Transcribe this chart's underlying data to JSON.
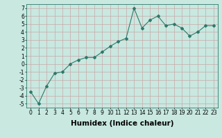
{
  "x": [
    0,
    1,
    2,
    3,
    4,
    5,
    6,
    7,
    8,
    9,
    10,
    11,
    12,
    13,
    14,
    15,
    16,
    17,
    18,
    19,
    20,
    21,
    22,
    23
  ],
  "y": [
    -3.5,
    -5.0,
    -2.8,
    -1.2,
    -1.0,
    0.0,
    0.5,
    0.8,
    0.8,
    1.5,
    2.2,
    2.8,
    3.2,
    7.0,
    4.5,
    5.5,
    6.0,
    4.8,
    5.0,
    4.5,
    3.5,
    4.0,
    4.8,
    4.8
  ],
  "xlabel": "Humidex (Indice chaleur)",
  "xlim": [
    -0.5,
    23.5
  ],
  "ylim": [
    -5.5,
    7.5
  ],
  "yticks": [
    -5,
    -4,
    -3,
    -2,
    -1,
    0,
    1,
    2,
    3,
    4,
    5,
    6,
    7
  ],
  "xticks": [
    0,
    1,
    2,
    3,
    4,
    5,
    6,
    7,
    8,
    9,
    10,
    11,
    12,
    13,
    14,
    15,
    16,
    17,
    18,
    19,
    20,
    21,
    22,
    23
  ],
  "line_color": "#2d7a6b",
  "marker": "D",
  "marker_size": 2.0,
  "bg_color": "#c8e8e0",
  "grid_color": "#c8a8a8",
  "xlabel_fontsize": 7.5,
  "tick_fontsize": 5.5,
  "linewidth": 0.8
}
